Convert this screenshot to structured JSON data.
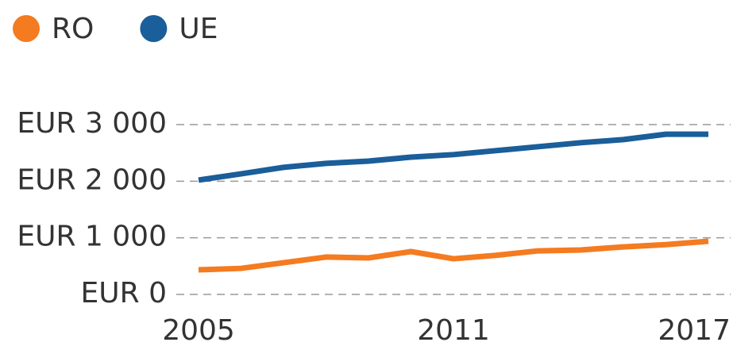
{
  "chart_data": {
    "type": "line",
    "x": [
      2005,
      2006,
      2007,
      2008,
      2009,
      2010,
      2011,
      2012,
      2013,
      2014,
      2015,
      2016,
      2017
    ],
    "series": [
      {
        "name": "RO",
        "color": "#f47b20",
        "values": [
          435,
          460,
          560,
          660,
          645,
          757,
          630,
          690,
          770,
          785,
          840,
          880,
          940
        ]
      },
      {
        "name": "UE",
        "color": "#1a5e9a",
        "values": [
          2020,
          2130,
          2245,
          2315,
          2355,
          2425,
          2470,
          2540,
          2610,
          2680,
          2735,
          2830,
          2830
        ]
      }
    ],
    "xlim": [
      2005,
      2017
    ],
    "xticks": [
      2005,
      2011,
      2017
    ],
    "ylim": [
      0,
      3000
    ],
    "yticks": [
      {
        "value": 0,
        "label": "EUR 0"
      },
      {
        "value": 1000,
        "label": "EUR 1 000"
      },
      {
        "value": 2000,
        "label": "EUR 2 000"
      },
      {
        "value": 3000,
        "label": "EUR 3 000"
      }
    ],
    "grid": true,
    "legend": "top-left"
  }
}
